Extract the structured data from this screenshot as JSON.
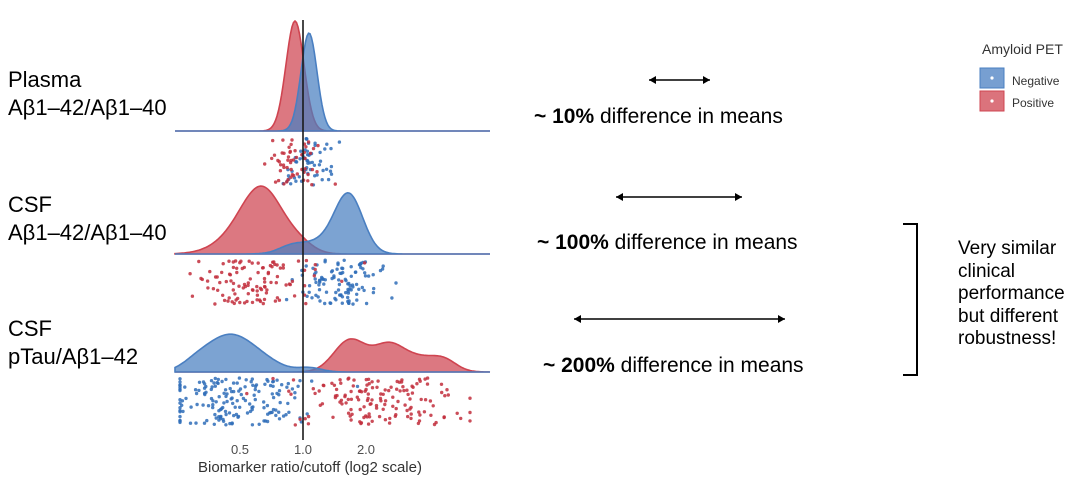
{
  "chart_data": {
    "type": "raincloud",
    "xlabel": "Biomarker ratio/cutoff (log2 scale)",
    "x_scale": "log2",
    "x_ticks": [
      0.5,
      1.0,
      2.0
    ],
    "x_tick_labels": [
      "0.5",
      "1.0",
      "2.0"
    ],
    "reference_line": 1.0,
    "legend": {
      "title": "Amyloid PET",
      "placement": "top-right",
      "entries": [
        {
          "name": "Negative",
          "color": "#4a7fc1"
        },
        {
          "name": "Positive",
          "color": "#cf4450"
        }
      ]
    },
    "rows": [
      {
        "label_line1": "Plasma",
        "label_line2": "Aβ1–42/Aβ1–40",
        "negative_center": 1.04,
        "positive_center": 0.96,
        "difference_prefix": "~ ",
        "difference_value": "10%",
        "difference_suffix": " difference in means"
      },
      {
        "label_line1": "CSF",
        "label_line2": "Aβ1–42/Aβ1–40",
        "negative_center": 1.65,
        "positive_center": 0.72,
        "difference_prefix": "~ ",
        "difference_value": "100%",
        "difference_suffix": " difference in means"
      },
      {
        "label_line1": "CSF",
        "label_line2": "pTau/Aβ1–42",
        "negative_center": 0.45,
        "positive_center": 1.75,
        "difference_prefix": "~ ",
        "difference_value": "200%",
        "difference_suffix": " difference in means"
      }
    ]
  },
  "annotation": {
    "text": "Very similar clinical performance but different robustness!"
  },
  "colors": {
    "negative": "#4a7fc1",
    "positive": "#cf4450",
    "negative_dot": "#2f6db8",
    "positive_dot": "#c22e3c"
  }
}
